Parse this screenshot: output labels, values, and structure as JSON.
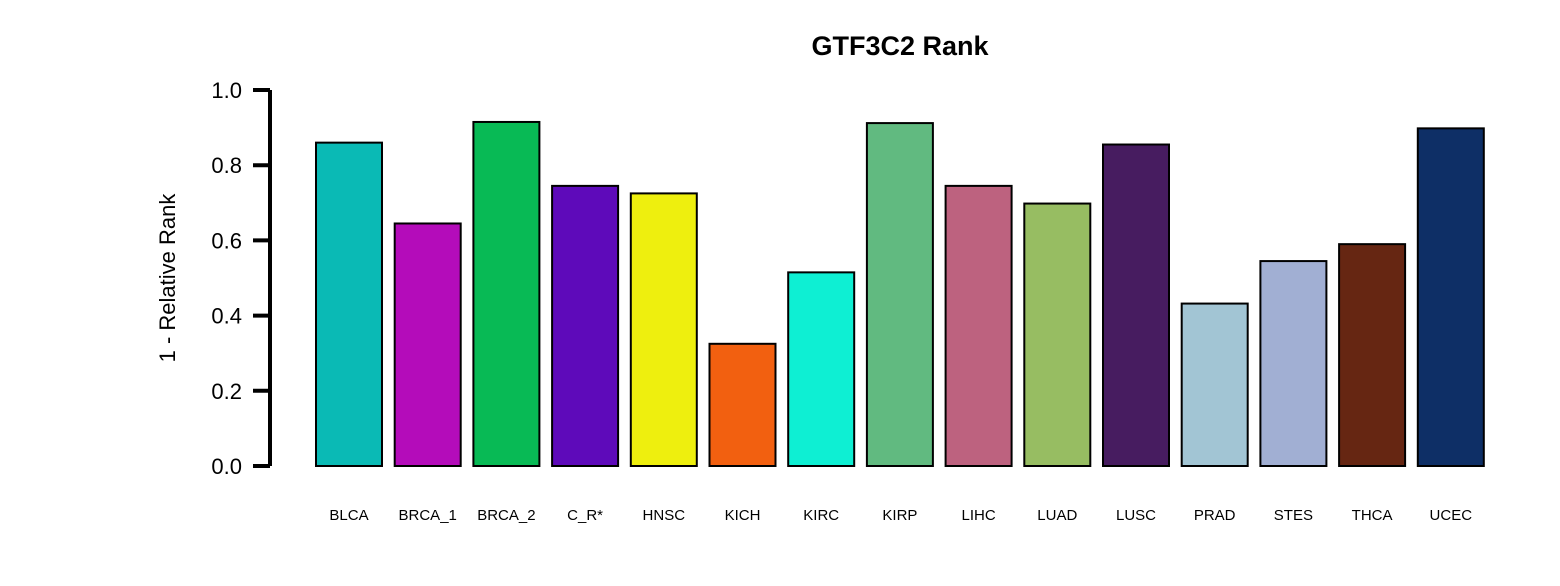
{
  "chart_data": {
    "type": "bar",
    "title": "GTF3C2 Rank",
    "xlabel": "",
    "ylabel": "1 - Relative Rank",
    "ylim": [
      0,
      1
    ],
    "yticks": [
      "0.0",
      "0.2",
      "0.4",
      "0.6",
      "0.8",
      "1.0"
    ],
    "categories": [
      "BLCA",
      "BRCA_1",
      "BRCA_2",
      "C_R*",
      "HNSC",
      "KICH",
      "KIRC",
      "KIRP",
      "LIHC",
      "LUAD",
      "LUSC",
      "PRAD",
      "STES",
      "THCA",
      "UCEC"
    ],
    "values": [
      0.86,
      0.645,
      0.915,
      0.745,
      0.725,
      0.325,
      0.515,
      0.912,
      0.745,
      0.698,
      0.855,
      0.432,
      0.545,
      0.59,
      0.898
    ],
    "colors": [
      "#0ABAB5",
      "#B40CBA",
      "#08BA55",
      "#5E0ABA",
      "#EEEF0E",
      "#F26010",
      "#0EEFD3",
      "#61BA80",
      "#BD627F",
      "#97BD62",
      "#471C60",
      "#A2C5D4",
      "#A1AFD3",
      "#662612",
      "#0E2F66"
    ],
    "grid": false,
    "legend": "none"
  }
}
